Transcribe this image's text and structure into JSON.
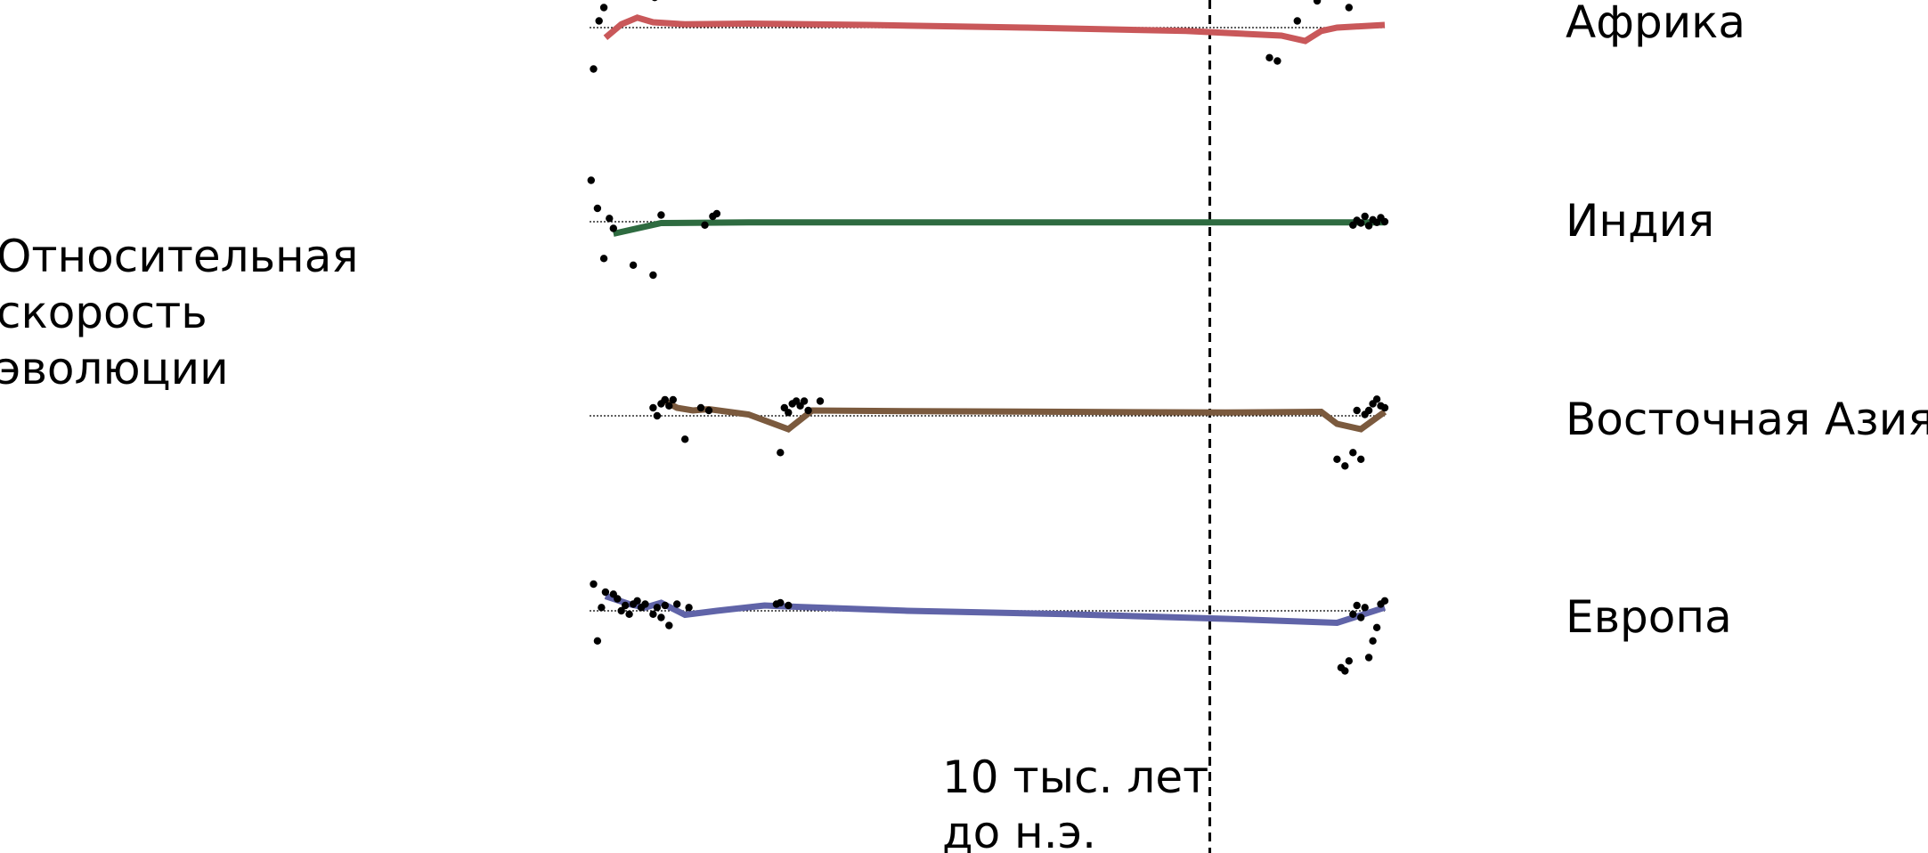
{
  "chart_data": {
    "type": "line",
    "y_label": [
      "Относительная",
      "скорость",
      "эволюции"
    ],
    "marker_label": [
      "10 тыс. лет",
      "до н.э."
    ],
    "x_range": [
      0,
      100
    ],
    "marker_x": 78,
    "y_range": [
      -1,
      1
    ],
    "baseline": "dotted",
    "series": [
      {
        "name": "Африка",
        "color": "#c9585a",
        "x": [
          2,
          4,
          6,
          8,
          10,
          16,
          20,
          30,
          50,
          70,
          84,
          87,
          88,
          91,
          94,
          98,
          100
        ],
        "y": [
          0.65,
          0.6,
          0.66,
          0.6,
          0.55,
          0.7,
          0.58,
          0.72,
          0.68,
          0.65,
          0.55,
          0.5,
          0.45,
          0.55,
          0.6,
          0.62,
          0.58
        ],
        "dots": {
          "x": [
            0.5,
            1.2,
            1.8,
            2.3,
            3.0,
            3.5,
            4.2,
            5.0,
            5.8,
            6.5,
            7.5,
            8.2,
            9.0,
            18.5,
            19.8,
            20.5,
            23.0,
            24.5,
            85.5,
            86.5,
            87.0,
            88.0,
            89.0,
            89.5,
            90.0,
            91.5,
            92.0,
            92.5,
            93.0,
            95.5,
            98.0,
            98.5,
            99.0,
            99.8
          ],
          "y": [
            -0.62,
            0.1,
            0.3,
            0.7,
            0.75,
            0.85,
            1.0,
            0.9,
            0.9,
            0.7,
            0.6,
            0.45,
            0.65,
            0.72,
            0.75,
            0.6,
            0.7,
            0.8,
            -0.45,
            -0.5,
            0.7,
            0.62,
            0.1,
            0.9,
            0.75,
            0.4,
            0.72,
            0.82,
            0.8,
            0.3,
            0.5,
            0.72,
            0.78,
            0.86
          ]
        },
        "fit": {
          "x": [
            2,
            4,
            6,
            8,
            12,
            20,
            35,
            55,
            75,
            87,
            90,
            92,
            94,
            97,
            100
          ],
          "y": [
            -0.15,
            0.05,
            0.15,
            0.08,
            0.05,
            0.06,
            0.04,
            0.0,
            -0.05,
            -0.12,
            -0.2,
            -0.05,
            0.0,
            0.02,
            0.04
          ]
        }
      },
      {
        "name": "Индия",
        "color": "#2e6b40",
        "dots": {
          "x": [
            0.2,
            1.0,
            1.8,
            2.5,
            3.0,
            5.5,
            8.0,
            9.0,
            14.5,
            15.5,
            16.0,
            96.0,
            96.5,
            97.0,
            97.5,
            98.0,
            98.5,
            99.0,
            99.5,
            100.0
          ],
          "y": [
            0.62,
            0.2,
            -0.55,
            0.05,
            -0.1,
            -0.65,
            -0.8,
            0.1,
            -0.05,
            0.08,
            0.12,
            -0.05,
            0.02,
            -0.02,
            0.08,
            -0.06,
            0.03,
            -0.01,
            0.06,
            0.0
          ],
          "note": "scatter around baseline"
        },
        "fit": {
          "x": [
            3,
            9,
            20,
            40,
            60,
            80,
            95,
            100
          ],
          "y": [
            -0.18,
            -0.02,
            -0.01,
            -0.01,
            -0.01,
            -0.01,
            -0.01,
            -0.01
          ]
        }
      },
      {
        "name": "Восточная Азия",
        "color": "#7b5a3e",
        "dots": {
          "x": [
            8.0,
            8.5,
            9.0,
            9.5,
            10.0,
            10.5,
            12.0,
            14.0,
            15.0,
            24.0,
            24.5,
            25.0,
            25.5,
            26.0,
            26.5,
            27.0,
            27.5,
            29.0,
            94.0,
            95.0,
            96.0,
            96.5,
            97.0,
            97.5,
            98.0,
            98.5,
            99.0,
            99.5,
            100.0
          ],
          "y": [
            0.12,
            0.0,
            0.18,
            0.24,
            0.15,
            0.24,
            -0.35,
            0.12,
            0.08,
            -0.55,
            0.12,
            0.05,
            0.18,
            0.22,
            0.15,
            0.22,
            0.08,
            0.22,
            -0.65,
            -0.75,
            -0.55,
            0.08,
            -0.65,
            0.02,
            0.08,
            0.18,
            0.25,
            0.15,
            0.12
          ]
        },
        "fit": {
          "x": [
            9,
            11,
            13,
            15,
            20,
            25,
            28,
            40,
            60,
            80,
            92,
            94,
            97,
            100
          ],
          "y": [
            0.25,
            0.12,
            0.08,
            0.1,
            0.02,
            -0.2,
            0.08,
            0.07,
            0.06,
            0.05,
            0.06,
            -0.12,
            -0.2,
            0.06
          ]
        }
      },
      {
        "name": "Европа",
        "color": "#6064a8",
        "dots": {
          "x": [
            0.5,
            1.0,
            1.5,
            2.0,
            3.0,
            3.5,
            4.0,
            4.5,
            5.0,
            5.5,
            6.0,
            6.5,
            7.0,
            8.0,
            8.5,
            9.0,
            9.5,
            10.0,
            11.0,
            12.5,
            23.5,
            24.0,
            25.0,
            94.5,
            95.0,
            95.5,
            96.0,
            96.5,
            97.0,
            97.5,
            98.0,
            98.5,
            99.0,
            99.5,
            100.0
          ],
          "y": [
            0.4,
            -0.45,
            0.05,
            0.28,
            0.25,
            0.18,
            0.0,
            0.08,
            -0.05,
            0.1,
            0.15,
            0.05,
            0.1,
            -0.05,
            0.05,
            -0.1,
            0.08,
            -0.22,
            0.1,
            0.05,
            0.1,
            0.12,
            0.08,
            -0.85,
            -0.9,
            -0.75,
            -0.05,
            0.08,
            -0.1,
            0.05,
            -0.7,
            -0.45,
            -0.25,
            0.1,
            0.15
          ]
        },
        "fit": {
          "x": [
            2,
            5,
            7,
            9,
            12,
            16,
            22,
            26,
            40,
            60,
            80,
            94,
            100
          ],
          "y": [
            0.22,
            0.1,
            0.05,
            0.12,
            -0.06,
            0.0,
            0.08,
            0.06,
            0.0,
            -0.05,
            -0.12,
            -0.18,
            0.05
          ]
        }
      }
    ]
  }
}
